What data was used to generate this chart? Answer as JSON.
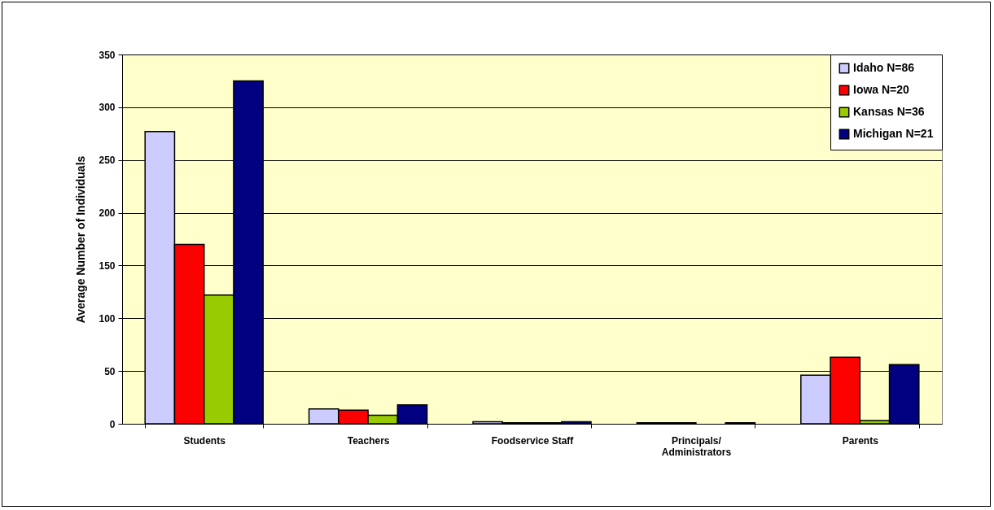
{
  "chart_data": {
    "type": "bar",
    "ylabel": "Average Number of Individuals",
    "categories": [
      "Students",
      "Teachers",
      "Foodservice Staff",
      "Principals/ Administrators",
      "Parents"
    ],
    "series": [
      {
        "name": "Idaho N=86",
        "color": "#ccccff",
        "values": [
          277,
          14,
          2,
          1,
          46
        ]
      },
      {
        "name": "Iowa N=20",
        "color": "#ff0000",
        "values": [
          170,
          13,
          1,
          1,
          63
        ]
      },
      {
        "name": "Kansas N=36",
        "color": "#99cc00",
        "values": [
          122,
          8,
          1,
          null,
          3
        ]
      },
      {
        "name": "Michigan N=21",
        "color": "#000080",
        "values": [
          325,
          18,
          2,
          1,
          56
        ]
      }
    ],
    "ylim": [
      0,
      350
    ],
    "yticks": [
      0,
      50,
      100,
      150,
      200,
      250,
      300,
      350
    ],
    "grid": "y",
    "legend": "top right"
  }
}
